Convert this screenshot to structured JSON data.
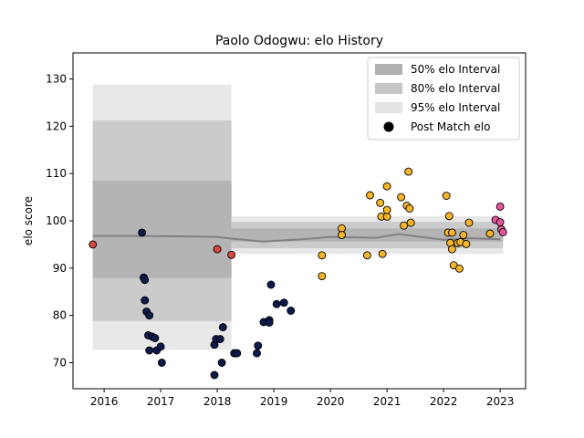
{
  "chart_data": {
    "type": "scatter",
    "title": "Paolo Odogwu: elo History",
    "ylabel": "elo score",
    "xlabel": "",
    "xlim": [
      2015.45,
      2023.45
    ],
    "ylim": [
      64.5,
      135.5
    ],
    "x_ticks": [
      "2016",
      "2017",
      "2018",
      "2019",
      "2020",
      "2021",
      "2022",
      "2023"
    ],
    "y_ticks": [
      "70",
      "80",
      "90",
      "100",
      "110",
      "120",
      "130"
    ],
    "legend": {
      "position": "top-right",
      "entries": [
        {
          "label": "50% elo Interval",
          "color": "#b0b0b0"
        },
        {
          "label": "80% elo Interval",
          "color": "#c6c6c6"
        },
        {
          "label": "95% elo Interval",
          "color": "#e4e4e4"
        },
        {
          "label": "Post Match elo",
          "color": "#000000"
        }
      ]
    },
    "colors": {
      "red": "#d64541",
      "navy": "#0d1b4c",
      "yellow": "#f5b52a",
      "pink": "#e3559b",
      "mean_line": "#808080"
    },
    "intervals": [
      {
        "x": [
          2015.8,
          2018.25
        ],
        "i50": [
          87.9,
          108.5
        ],
        "i80": [
          78.8,
          121.2
        ],
        "i95": [
          72.7,
          128.8
        ]
      },
      {
        "x": [
          2018.25,
          2023.05
        ],
        "i50": [
          95.6,
          98.4
        ],
        "i80": [
          94.2,
          99.8
        ],
        "i95": [
          93.0,
          101.0
        ]
      }
    ],
    "mean_line": {
      "x": [
        2015.8,
        2016.7,
        2017.5,
        2018.0,
        2018.2,
        2018.8,
        2019.5,
        2020.0,
        2020.8,
        2021.2,
        2021.6,
        2022.0,
        2022.5,
        2023.0
      ],
      "y": [
        96.8,
        96.8,
        96.7,
        96.6,
        96.3,
        95.6,
        96.1,
        96.6,
        96.4,
        97.2,
        96.6,
        96.0,
        96.3,
        96.1
      ]
    },
    "series": [
      {
        "name": "red",
        "color": "#d64541",
        "points": [
          [
            2015.8,
            95.0
          ],
          [
            2018.0,
            94.0
          ],
          [
            2018.25,
            92.8
          ]
        ]
      },
      {
        "name": "navy",
        "color": "#0d1b4c",
        "points": [
          [
            2016.67,
            97.5
          ],
          [
            2016.7,
            88.0
          ],
          [
            2016.72,
            87.5
          ],
          [
            2016.72,
            83.2
          ],
          [
            2016.75,
            80.8
          ],
          [
            2016.8,
            80.0
          ],
          [
            2016.78,
            75.8
          ],
          [
            2016.85,
            75.5
          ],
          [
            2016.9,
            75.2
          ],
          [
            2016.8,
            72.6
          ],
          [
            2016.93,
            72.6
          ],
          [
            2017.0,
            73.4
          ],
          [
            2017.02,
            70.0
          ],
          [
            2017.95,
            73.8
          ],
          [
            2017.98,
            75.0
          ],
          [
            2018.05,
            75.0
          ],
          [
            2018.1,
            77.5
          ],
          [
            2018.08,
            70.0
          ],
          [
            2017.95,
            67.4
          ],
          [
            2018.3,
            72.0
          ],
          [
            2018.35,
            72.0
          ],
          [
            2018.7,
            72.0
          ],
          [
            2018.72,
            73.6
          ],
          [
            2018.82,
            78.6
          ],
          [
            2018.92,
            79.0
          ],
          [
            2018.92,
            78.5
          ],
          [
            2018.95,
            86.5
          ],
          [
            2019.05,
            82.4
          ],
          [
            2019.18,
            82.7
          ],
          [
            2019.3,
            81.0
          ]
        ]
      },
      {
        "name": "yellow",
        "color": "#f5b52a",
        "points": [
          [
            2019.85,
            92.7
          ],
          [
            2019.85,
            88.3
          ],
          [
            2020.2,
            98.4
          ],
          [
            2020.2,
            97.0
          ],
          [
            2020.65,
            92.7
          ],
          [
            2020.7,
            105.4
          ],
          [
            2020.88,
            103.8
          ],
          [
            2020.9,
            100.9
          ],
          [
            2020.92,
            93.0
          ],
          [
            2021.0,
            100.9
          ],
          [
            2021.0,
            107.3
          ],
          [
            2021.0,
            102.3
          ],
          [
            2021.25,
            105.0
          ],
          [
            2021.3,
            99.0
          ],
          [
            2021.35,
            103.2
          ],
          [
            2021.38,
            110.4
          ],
          [
            2021.4,
            102.6
          ],
          [
            2021.42,
            99.6
          ],
          [
            2022.05,
            105.3
          ],
          [
            2022.08,
            97.5
          ],
          [
            2022.1,
            101.0
          ],
          [
            2022.12,
            95.3
          ],
          [
            2022.15,
            97.5
          ],
          [
            2022.15,
            94.0
          ],
          [
            2022.18,
            90.6
          ],
          [
            2022.25,
            95.3
          ],
          [
            2022.28,
            89.9
          ],
          [
            2022.3,
            95.5
          ],
          [
            2022.35,
            97.0
          ],
          [
            2022.4,
            95.1
          ],
          [
            2022.45,
            99.6
          ],
          [
            2022.82,
            97.3
          ]
        ]
      },
      {
        "name": "pink",
        "color": "#e3559b",
        "points": [
          [
            2022.92,
            100.2
          ],
          [
            2023.0,
            103.0
          ],
          [
            2023.0,
            99.7
          ],
          [
            2023.02,
            98.2
          ],
          [
            2023.05,
            97.6
          ]
        ]
      }
    ]
  }
}
